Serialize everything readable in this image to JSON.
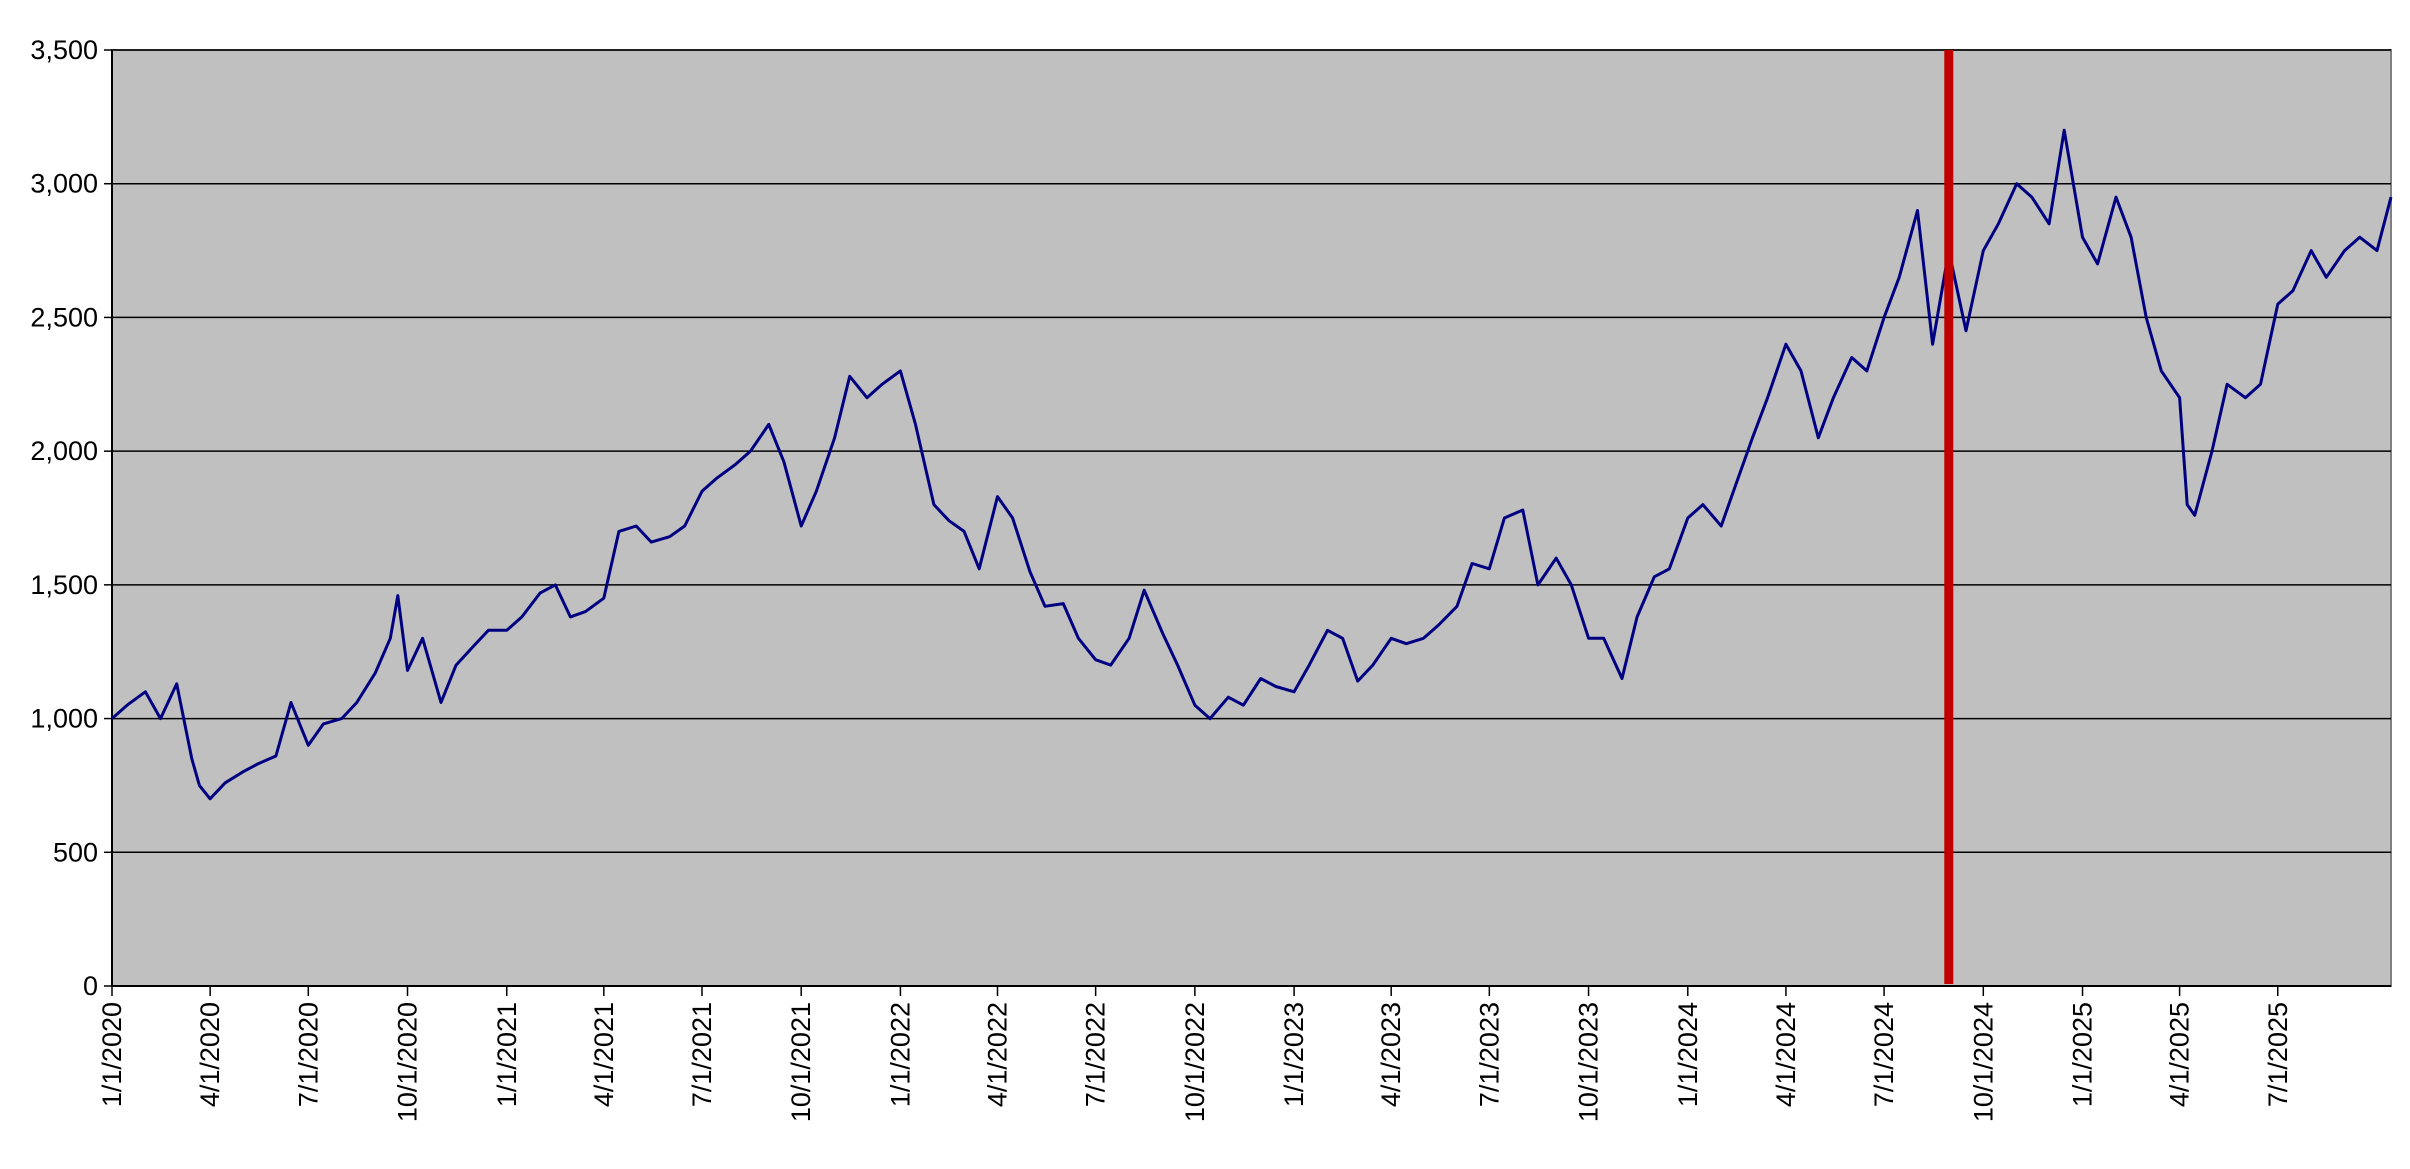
{
  "chart_data": {
    "type": "line",
    "x": [
      "2020-01-01",
      "2020-01-15",
      "2020-02-01",
      "2020-02-15",
      "2020-03-01",
      "2020-03-15",
      "2020-03-22",
      "2020-04-01",
      "2020-04-15",
      "2020-05-01",
      "2020-05-15",
      "2020-06-01",
      "2020-06-15",
      "2020-07-01",
      "2020-07-15",
      "2020-08-01",
      "2020-08-15",
      "2020-09-01",
      "2020-09-15",
      "2020-09-22",
      "2020-10-01",
      "2020-10-15",
      "2020-11-01",
      "2020-11-15",
      "2020-12-01",
      "2020-12-15",
      "2021-01-01",
      "2021-01-15",
      "2021-02-01",
      "2021-02-15",
      "2021-03-01",
      "2021-03-15",
      "2021-04-01",
      "2021-04-15",
      "2021-05-01",
      "2021-05-15",
      "2021-06-01",
      "2021-06-15",
      "2021-07-01",
      "2021-07-15",
      "2021-08-01",
      "2021-08-15",
      "2021-09-01",
      "2021-09-15",
      "2021-10-01",
      "2021-10-15",
      "2021-11-01",
      "2021-11-15",
      "2021-12-01",
      "2021-12-15",
      "2022-01-01",
      "2022-01-15",
      "2022-02-01",
      "2022-02-15",
      "2022-03-01",
      "2022-03-15",
      "2022-04-01",
      "2022-04-15",
      "2022-05-01",
      "2022-05-15",
      "2022-06-01",
      "2022-06-15",
      "2022-07-01",
      "2022-07-15",
      "2022-08-01",
      "2022-08-15",
      "2022-09-01",
      "2022-09-15",
      "2022-10-01",
      "2022-10-15",
      "2022-11-01",
      "2022-11-15",
      "2022-12-01",
      "2022-12-15",
      "2023-01-01",
      "2023-01-15",
      "2023-02-01",
      "2023-02-15",
      "2023-03-01",
      "2023-03-15",
      "2023-04-01",
      "2023-04-15",
      "2023-05-01",
      "2023-05-15",
      "2023-06-01",
      "2023-06-15",
      "2023-07-01",
      "2023-07-15",
      "2023-08-01",
      "2023-08-15",
      "2023-09-01",
      "2023-09-15",
      "2023-10-01",
      "2023-10-15",
      "2023-11-01",
      "2023-11-15",
      "2023-12-01",
      "2023-12-15",
      "2024-01-01",
      "2024-01-15",
      "2024-02-01",
      "2024-02-15",
      "2024-03-01",
      "2024-03-15",
      "2024-04-01",
      "2024-04-15",
      "2024-05-01",
      "2024-05-15",
      "2024-06-01",
      "2024-06-15",
      "2024-07-01",
      "2024-07-15",
      "2024-08-01",
      "2024-08-15",
      "2024-08-30",
      "2024-09-15",
      "2024-10-01",
      "2024-10-15",
      "2024-11-01",
      "2024-11-15",
      "2024-12-01",
      "2024-12-15",
      "2025-01-01",
      "2025-01-15",
      "2025-02-01",
      "2025-02-15",
      "2025-03-01",
      "2025-03-15",
      "2025-04-01",
      "2025-04-08",
      "2025-04-15",
      "2025-05-01",
      "2025-05-15",
      "2025-06-01",
      "2025-06-15",
      "2025-07-01",
      "2025-07-15",
      "2025-08-01",
      "2025-08-15",
      "2025-09-01",
      "2025-09-15",
      "2025-10-01",
      "2025-10-14"
    ],
    "series": [
      {
        "color": "#000080",
        "values": [
          1000,
          1050,
          1100,
          1000,
          1130,
          850,
          750,
          700,
          760,
          800,
          830,
          860,
          1060,
          900,
          980,
          1000,
          1060,
          1170,
          1300,
          1460,
          1180,
          1300,
          1060,
          1200,
          1270,
          1330,
          1330,
          1380,
          1470,
          1500,
          1380,
          1400,
          1450,
          1700,
          1720,
          1660,
          1680,
          1720,
          1850,
          1900,
          1950,
          2000,
          2100,
          1960,
          1720,
          1850,
          2050,
          2280,
          2200,
          2250,
          2300,
          2100,
          1800,
          1740,
          1700,
          1560,
          1830,
          1750,
          1550,
          1420,
          1430,
          1300,
          1220,
          1200,
          1300,
          1480,
          1320,
          1200,
          1050,
          1000,
          1080,
          1050,
          1150,
          1120,
          1100,
          1200,
          1330,
          1300,
          1140,
          1200,
          1300,
          1280,
          1300,
          1350,
          1420,
          1580,
          1560,
          1750,
          1780,
          1500,
          1600,
          1500,
          1300,
          1300,
          1150,
          1380,
          1530,
          1560,
          1750,
          1800,
          1720,
          1880,
          2050,
          2200,
          2400,
          2300,
          2050,
          2200,
          2350,
          2300,
          2500,
          2650,
          2900,
          2400,
          2750,
          2450,
          2750,
          2850,
          3000,
          2950,
          2850,
          3200,
          2800,
          2700,
          2950,
          2800,
          2500,
          2300,
          2200,
          1800,
          1760,
          2000,
          2250,
          2200,
          2250,
          2550,
          2600,
          2750,
          2650,
          2750,
          2800,
          2750,
          2950
        ]
      }
    ],
    "xlim": [
      "2020-01-01",
      "2025-10-14"
    ],
    "xticks": [
      {
        "value": "2020-01-01",
        "label": "1/1/2020"
      },
      {
        "value": "2020-04-01",
        "label": "4/1/2020"
      },
      {
        "value": "2020-07-01",
        "label": "7/1/2020"
      },
      {
        "value": "2020-10-01",
        "label": "10/1/2020"
      },
      {
        "value": "2021-01-01",
        "label": "1/1/2021"
      },
      {
        "value": "2021-04-01",
        "label": "4/1/2021"
      },
      {
        "value": "2021-07-01",
        "label": "7/1/2021"
      },
      {
        "value": "2021-10-01",
        "label": "10/1/2021"
      },
      {
        "value": "2022-01-01",
        "label": "1/1/2022"
      },
      {
        "value": "2022-04-01",
        "label": "4/1/2022"
      },
      {
        "value": "2022-07-01",
        "label": "7/1/2022"
      },
      {
        "value": "2022-10-01",
        "label": "10/1/2022"
      },
      {
        "value": "2023-01-01",
        "label": "1/1/2023"
      },
      {
        "value": "2023-04-01",
        "label": "4/1/2023"
      },
      {
        "value": "2023-07-01",
        "label": "7/1/2023"
      },
      {
        "value": "2023-10-01",
        "label": "10/1/2023"
      },
      {
        "value": "2024-01-01",
        "label": "1/1/2024"
      },
      {
        "value": "2024-04-01",
        "label": "4/1/2024"
      },
      {
        "value": "2024-07-01",
        "label": "7/1/2024"
      },
      {
        "value": "2024-10-01",
        "label": "10/1/2024"
      },
      {
        "value": "2025-01-01",
        "label": "1/1/2025"
      },
      {
        "value": "2025-04-01",
        "label": "4/1/2025"
      },
      {
        "value": "2025-07-01",
        "label": "7/1/2025"
      }
    ],
    "ylim": [
      0,
      3500
    ],
    "yticks": [
      0,
      500,
      {
        "value": 1000,
        "label": "1,000"
      },
      {
        "value": 1500,
        "label": "1,500"
      },
      {
        "value": 2000,
        "label": "2,000"
      },
      {
        "value": 2500,
        "label": "2,500"
      },
      {
        "value": 3000,
        "label": "3,000"
      },
      {
        "value": 3500,
        "label": "3,500"
      }
    ],
    "grid": true,
    "background": "#c0c0c0",
    "vline": {
      "x": "2024-08-30",
      "color": "#c00000"
    }
  }
}
